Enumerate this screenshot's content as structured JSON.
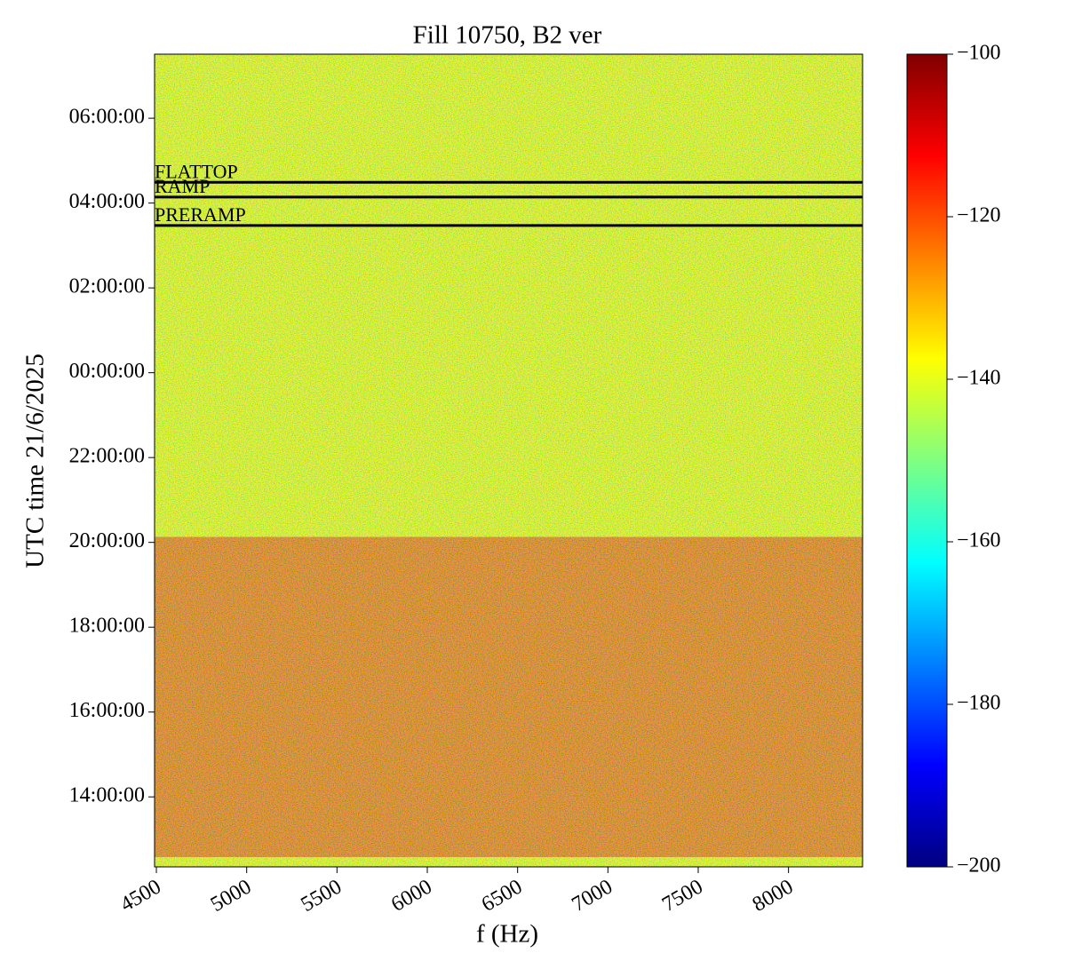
{
  "chart_data": {
    "type": "spectrogram",
    "title": "Fill 10750, B2 ver",
    "xlabel": "f (Hz)",
    "ylabel": "UTC time 21/6/2025",
    "xlim": [
      4490,
      8410
    ],
    "xticks": [
      4500,
      5000,
      5500,
      6000,
      6500,
      7000,
      7500,
      8000
    ],
    "ylim": [
      -11.65,
      7.51
    ],
    "yticks": [
      {
        "value": -10,
        "label": "14:00:00"
      },
      {
        "value": -8,
        "label": "16:00:00"
      },
      {
        "value": -6,
        "label": "18:00:00"
      },
      {
        "value": -4,
        "label": "20:00:00"
      },
      {
        "value": -2,
        "label": "22:00:00"
      },
      {
        "value": 0,
        "label": "00:00:00"
      },
      {
        "value": 2,
        "label": "02:00:00"
      },
      {
        "value": 4,
        "label": "04:00:00"
      },
      {
        "value": 6,
        "label": "06:00:00"
      }
    ],
    "bands": [
      {
        "t": [
          -11.65,
          -11.42
        ],
        "level": -138
      },
      {
        "t": [
          -11.42,
          -3.87
        ],
        "level": -124
      },
      {
        "t": [
          -3.87,
          7.51
        ],
        "level": -138
      }
    ],
    "phases": [
      {
        "label": "FLATTOP",
        "t": 4.49
      },
      {
        "label": "RAMP",
        "t": 4.14
      },
      {
        "label": "PRERAMP",
        "t": 3.47
      }
    ],
    "colormap": "jet",
    "zlim": [
      -200,
      -100
    ],
    "zticks": [
      {
        "value": -100,
        "label": "−100"
      },
      {
        "value": -120,
        "label": "−120"
      },
      {
        "value": -140,
        "label": "−140"
      },
      {
        "value": -160,
        "label": "−160"
      },
      {
        "value": -180,
        "label": "−180"
      },
      {
        "value": -200,
        "label": "−200"
      }
    ]
  }
}
